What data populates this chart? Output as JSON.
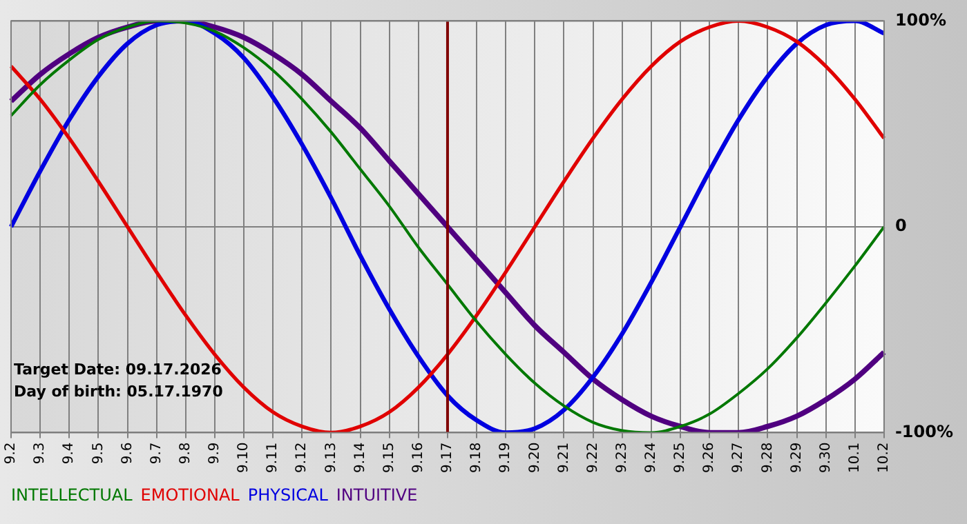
{
  "chart_data": {
    "type": "line",
    "categories": [
      "9.2",
      "9.3",
      "9.4",
      "9.5",
      "9.6",
      "9.7",
      "9.8",
      "9.9",
      "9.10",
      "9.11",
      "9.12",
      "9.13",
      "9.14",
      "9.15",
      "9.16",
      "9.17",
      "9.18",
      "9.19",
      "9.20",
      "9.21",
      "9.22",
      "9.23",
      "9.24",
      "9.25",
      "9.26",
      "9.27",
      "9.28",
      "9.29",
      "9.30",
      "10.1",
      "10.2"
    ],
    "series": [
      {
        "name": "INTELLECTUAL",
        "color": "#007800",
        "values": [
          54,
          69,
          81,
          91,
          97,
          100,
          99,
          95,
          87,
          76,
          62,
          46,
          28,
          10,
          -10,
          -28,
          -46,
          -62,
          -76,
          -87,
          -95,
          -99,
          -100,
          -97,
          -91,
          -81,
          -69,
          -54,
          -37,
          -19,
          0
        ]
      },
      {
        "name": "EMOTIONAL",
        "color": "#e00000",
        "values": [
          78,
          62,
          43,
          22,
          0,
          -22,
          -43,
          -62,
          -78,
          -90,
          -97,
          -100,
          -97,
          -90,
          -78,
          -62,
          -43,
          -22,
          0,
          22,
          43,
          62,
          78,
          90,
          97,
          100,
          97,
          90,
          78,
          62,
          43
        ]
      },
      {
        "name": "PHYSICAL",
        "color": "#0000e0",
        "values": [
          0,
          27,
          52,
          73,
          89,
          98,
          100,
          94,
          82,
          63,
          40,
          14,
          -14,
          -40,
          -63,
          -82,
          -94,
          -100,
          -98,
          -89,
          -73,
          -52,
          -27,
          0,
          27,
          52,
          73,
          89,
          98,
          100,
          94
        ]
      },
      {
        "name": "INTUITIVE",
        "color": "#500080",
        "values": [
          61,
          74,
          84,
          92,
          97,
          100,
          100,
          97,
          92,
          84,
          74,
          61,
          48,
          32,
          16,
          0,
          -16,
          -32,
          -48,
          -61,
          -74,
          -84,
          -92,
          -97,
          -100,
          -100,
          -97,
          -92,
          -84,
          -74,
          -61
        ]
      }
    ],
    "ylim": [
      -100,
      100
    ],
    "yticks": [
      {
        "value": -100,
        "label": "-100%"
      },
      0,
      {
        "value": 100,
        "label": "100%"
      }
    ],
    "grid": true,
    "legend": "bottom",
    "marker": "none",
    "line_style": "solid",
    "ref_lines": [
      {
        "axis": "x",
        "value": "9.17",
        "color": "#800000"
      }
    ],
    "annotations": [
      "Target Date: 09.17.2026",
      "Day of birth: 05.17.1970"
    ]
  }
}
